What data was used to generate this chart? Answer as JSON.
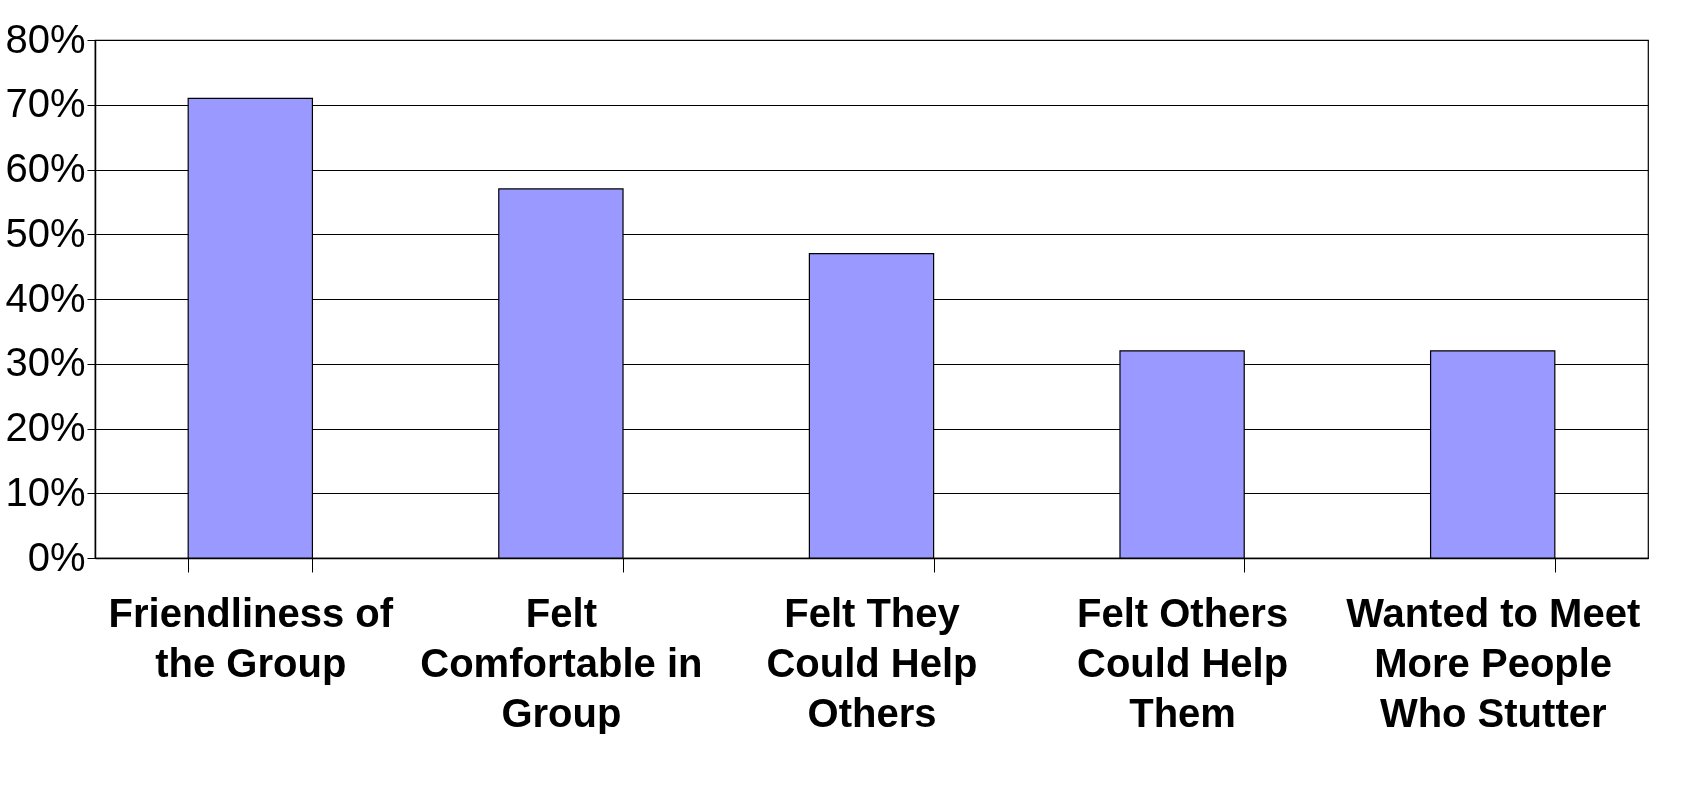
{
  "chart_data": {
    "type": "bar",
    "categories": [
      "Friendliness of the Group",
      "Felt Comfortable in Group",
      "Felt They Could Help Others",
      "Felt Others Could Help Them",
      "Wanted to Meet More People Who Stutter"
    ],
    "values": [
      71,
      57,
      47,
      32,
      32
    ],
    "color": "#9999ff",
    "ylim": [
      0,
      80
    ],
    "yticks": [
      {
        "value": 0,
        "label": "0%"
      },
      {
        "value": 10,
        "label": "10%"
      },
      {
        "value": 20,
        "label": "20%"
      },
      {
        "value": 30,
        "label": "30%"
      },
      {
        "value": 40,
        "label": "40%"
      },
      {
        "value": 50,
        "label": "50%"
      },
      {
        "value": 60,
        "label": "60%"
      },
      {
        "value": 70,
        "label": "70%"
      },
      {
        "value": 80,
        "label": "80%"
      }
    ],
    "grid": "y"
  }
}
